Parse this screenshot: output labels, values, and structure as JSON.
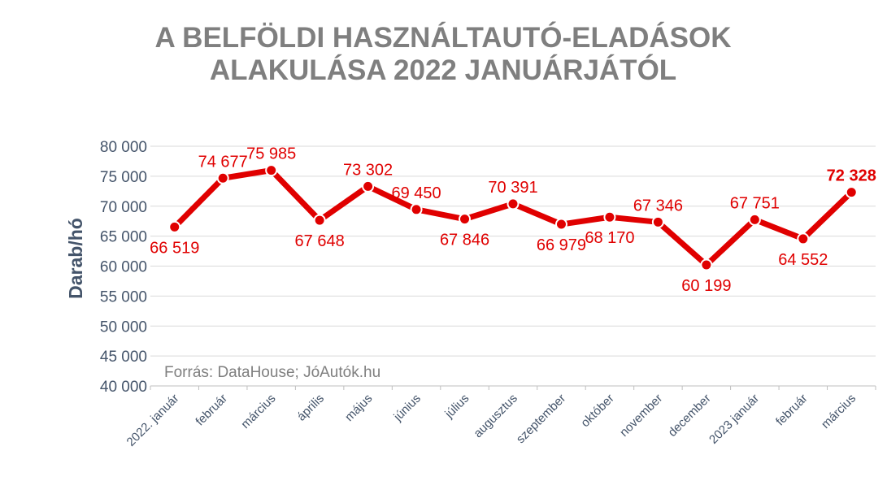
{
  "chart_data": {
    "type": "line",
    "title_lines": [
      "A BELFÖLDI HASZNÁLTAUTÓ-ELADÁSOK",
      "ALAKULÁSA 2022 JANUÁRJÁTÓL"
    ],
    "ylabel": "Darab/hó",
    "xlabel": "",
    "source": "Forrás: DataHouse; JóAutók.hu",
    "ylim": [
      40000,
      80000
    ],
    "ytick_labels": [
      "80 000",
      "75 000",
      "70 000",
      "65 000",
      "60 000",
      "55 000",
      "50 000",
      "45 000",
      "40 000"
    ],
    "categories": [
      "2022. január",
      "február",
      "március",
      "április",
      "május",
      "június",
      "július",
      "augusztus",
      "szeptember",
      "október",
      "november",
      "december",
      "2023 január",
      "február",
      "március"
    ],
    "series": [
      {
        "values": [
          66519,
          74677,
          75985,
          67648,
          73302,
          69450,
          67846,
          70391,
          66979,
          68170,
          67346,
          60199,
          67751,
          64552,
          72328
        ],
        "labels": [
          "66 519",
          "74 677",
          "75 985",
          "67 648",
          "73 302",
          "69 450",
          "67 846",
          "70 391",
          "66 979",
          "68 170",
          "67 346",
          "60 199",
          "67 751",
          "64 552",
          "72 328"
        ],
        "label_positions": [
          "below",
          "above",
          "above",
          "below",
          "above",
          "above",
          "below",
          "above",
          "below",
          "below",
          "above",
          "below",
          "above",
          "below",
          "above"
        ],
        "color": "#e00000"
      }
    ],
    "grid": true,
    "legend": "none"
  }
}
